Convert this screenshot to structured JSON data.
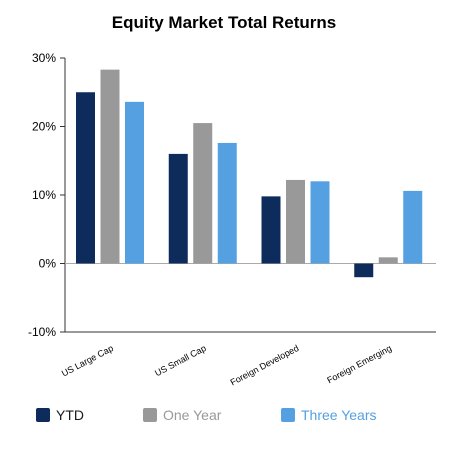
{
  "chart_data": {
    "type": "bar",
    "title": "Equity Market Total Returns",
    "xlabel": "",
    "ylabel": "",
    "categories": [
      "US Large Cap",
      "US Small Cap",
      "Foreign Developed",
      "Foreign Emerging"
    ],
    "series": [
      {
        "name": "YTD",
        "color": "#0d2b5b",
        "values": [
          25.0,
          16.0,
          9.8,
          -2.0
        ]
      },
      {
        "name": "One Year",
        "color": "#999999",
        "values": [
          28.3,
          20.5,
          12.2,
          0.9
        ]
      },
      {
        "name": "Three Years",
        "color": "#55a0e0",
        "values": [
          23.6,
          17.6,
          12.0,
          10.6
        ]
      }
    ],
    "ylim": [
      -10,
      30
    ],
    "yticks": [
      -10,
      0,
      10,
      20,
      30
    ],
    "ytick_labels": [
      "-10%",
      "0%",
      "10%",
      "20%",
      "30%"
    ],
    "grid": false,
    "legend_position": "bottom",
    "legend_text_colors": [
      "#1a1a1a",
      "#999999",
      "#55a0e0"
    ],
    "axis_color": "#333333",
    "zero_line_color": "#aaaaaa"
  }
}
